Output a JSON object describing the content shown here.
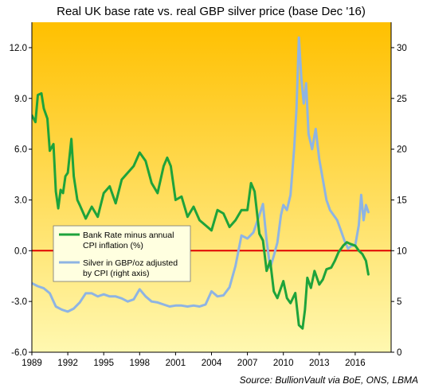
{
  "chart_data": {
    "type": "line",
    "title": "Real UK base rate vs. real GBP silver price (base Dec '16)",
    "source": "Source: BullionVault via BoE, ONS, LBMA",
    "x_ticks": [
      "1989",
      "1992",
      "1995",
      "1998",
      "2001",
      "2004",
      "2007",
      "2010",
      "2013",
      "2016"
    ],
    "xlim": [
      1989.0,
      2019.0
    ],
    "y_left": {
      "ticks": [
        "12.0",
        "9.0",
        "6.0",
        "3.0",
        "0.0",
        "-3.0",
        "-6.0"
      ],
      "ylim": [
        -6.0,
        13.5
      ]
    },
    "y_right": {
      "ticks": [
        "30",
        "25",
        "20",
        "15",
        "10",
        "5",
        "0"
      ],
      "ylim": [
        0,
        32.5
      ]
    },
    "zero_line_color": "#e00000",
    "background_gradient": [
      "#ffc000",
      "#fff8b0"
    ],
    "series": [
      {
        "name": "Bank Rate minus annual CPI inflation (%)",
        "axis": "left",
        "color": "#1ea33b",
        "x": [
          1989.0,
          1989.3,
          1989.5,
          1989.8,
          1990.0,
          1990.3,
          1990.5,
          1990.8,
          1991.0,
          1991.2,
          1991.4,
          1991.6,
          1991.8,
          1992.0,
          1992.3,
          1992.5,
          1992.8,
          1993.0,
          1993.5,
          1994.0,
          1994.5,
          1995.0,
          1995.5,
          1996.0,
          1996.5,
          1997.0,
          1997.5,
          1998.0,
          1998.5,
          1999.0,
          1999.5,
          2000.0,
          2000.3,
          2000.6,
          2001.0,
          2001.5,
          2002.0,
          2002.5,
          2003.0,
          2003.5,
          2004.0,
          2004.5,
          2005.0,
          2005.5,
          2006.0,
          2006.5,
          2007.0,
          2007.3,
          2007.6,
          2008.0,
          2008.3,
          2008.6,
          2008.9,
          2009.2,
          2009.5,
          2009.8,
          2010.0,
          2010.3,
          2010.6,
          2011.0,
          2011.3,
          2011.6,
          2011.8,
          2012.0,
          2012.3,
          2012.6,
          2013.0,
          2013.3,
          2013.6,
          2014.0,
          2014.3,
          2014.6,
          2015.0,
          2015.3,
          2015.6,
          2016.0,
          2016.3,
          2016.6,
          2016.9,
          2017.1
        ],
        "values": [
          8.0,
          7.6,
          9.2,
          9.3,
          8.4,
          7.8,
          5.9,
          6.3,
          3.5,
          2.5,
          3.6,
          3.4,
          4.4,
          4.6,
          6.6,
          4.4,
          3.0,
          2.7,
          1.9,
          2.6,
          2.0,
          3.4,
          3.8,
          2.8,
          4.2,
          4.6,
          5.0,
          5.8,
          5.3,
          4.0,
          3.4,
          5.0,
          5.5,
          5.0,
          3.0,
          3.2,
          2.0,
          2.6,
          1.8,
          1.5,
          1.2,
          2.4,
          2.2,
          1.4,
          1.8,
          2.4,
          2.4,
          4.0,
          3.5,
          1.0,
          0.6,
          -1.2,
          -0.6,
          -2.4,
          -2.8,
          -2.2,
          -1.8,
          -2.8,
          -3.1,
          -2.5,
          -4.4,
          -4.6,
          -3.5,
          -1.6,
          -2.2,
          -1.2,
          -2.0,
          -1.7,
          -1.1,
          -1.0,
          -0.6,
          -0.1,
          0.3,
          0.5,
          0.4,
          0.3,
          0.0,
          -0.2,
          -0.6,
          -1.4
        ]
      },
      {
        "name": "Silver in GBP/oz adjusted by CPI (right axis)",
        "axis": "right",
        "color": "#8eb4e3",
        "x": [
          1989.0,
          1989.5,
          1990.0,
          1990.5,
          1991.0,
          1991.5,
          1992.0,
          1992.5,
          1993.0,
          1993.5,
          1994.0,
          1994.5,
          1995.0,
          1995.5,
          1996.0,
          1996.5,
          1997.0,
          1997.5,
          1998.0,
          1998.5,
          1999.0,
          1999.5,
          2000.0,
          2000.5,
          2001.0,
          2001.5,
          2002.0,
          2002.5,
          2003.0,
          2003.5,
          2004.0,
          2004.5,
          2005.0,
          2005.5,
          2006.0,
          2006.5,
          2007.0,
          2007.5,
          2008.0,
          2008.3,
          2008.6,
          2008.9,
          2009.2,
          2009.5,
          2009.8,
          2010.0,
          2010.3,
          2010.6,
          2010.9,
          2011.1,
          2011.3,
          2011.5,
          2011.7,
          2011.9,
          2012.1,
          2012.4,
          2012.7,
          2013.0,
          2013.3,
          2013.6,
          2013.9,
          2014.2,
          2014.5,
          2014.8,
          2015.1,
          2015.4,
          2015.7,
          2016.0,
          2016.3,
          2016.5,
          2016.7,
          2016.9,
          2017.1
        ],
        "values": [
          6.8,
          6.5,
          6.3,
          5.8,
          4.5,
          4.2,
          4.0,
          4.3,
          4.9,
          5.8,
          5.8,
          5.5,
          5.7,
          5.5,
          5.5,
          5.3,
          5.0,
          5.2,
          6.2,
          5.5,
          5.0,
          4.9,
          4.7,
          4.5,
          4.6,
          4.6,
          4.5,
          4.6,
          4.5,
          4.7,
          6.0,
          5.5,
          5.6,
          6.4,
          8.5,
          11.5,
          11.2,
          11.8,
          13.5,
          14.6,
          11.0,
          8.3,
          9.5,
          10.8,
          13.5,
          14.5,
          14.0,
          15.5,
          20.0,
          24.0,
          31.0,
          27.0,
          24.5,
          26.5,
          21.5,
          20.0,
          22.0,
          19.0,
          17.0,
          15.0,
          14.0,
          13.5,
          13.0,
          12.0,
          11.0,
          10.2,
          10.5,
          10.5,
          12.5,
          15.5,
          13.0,
          14.5,
          13.8
        ]
      }
    ]
  }
}
